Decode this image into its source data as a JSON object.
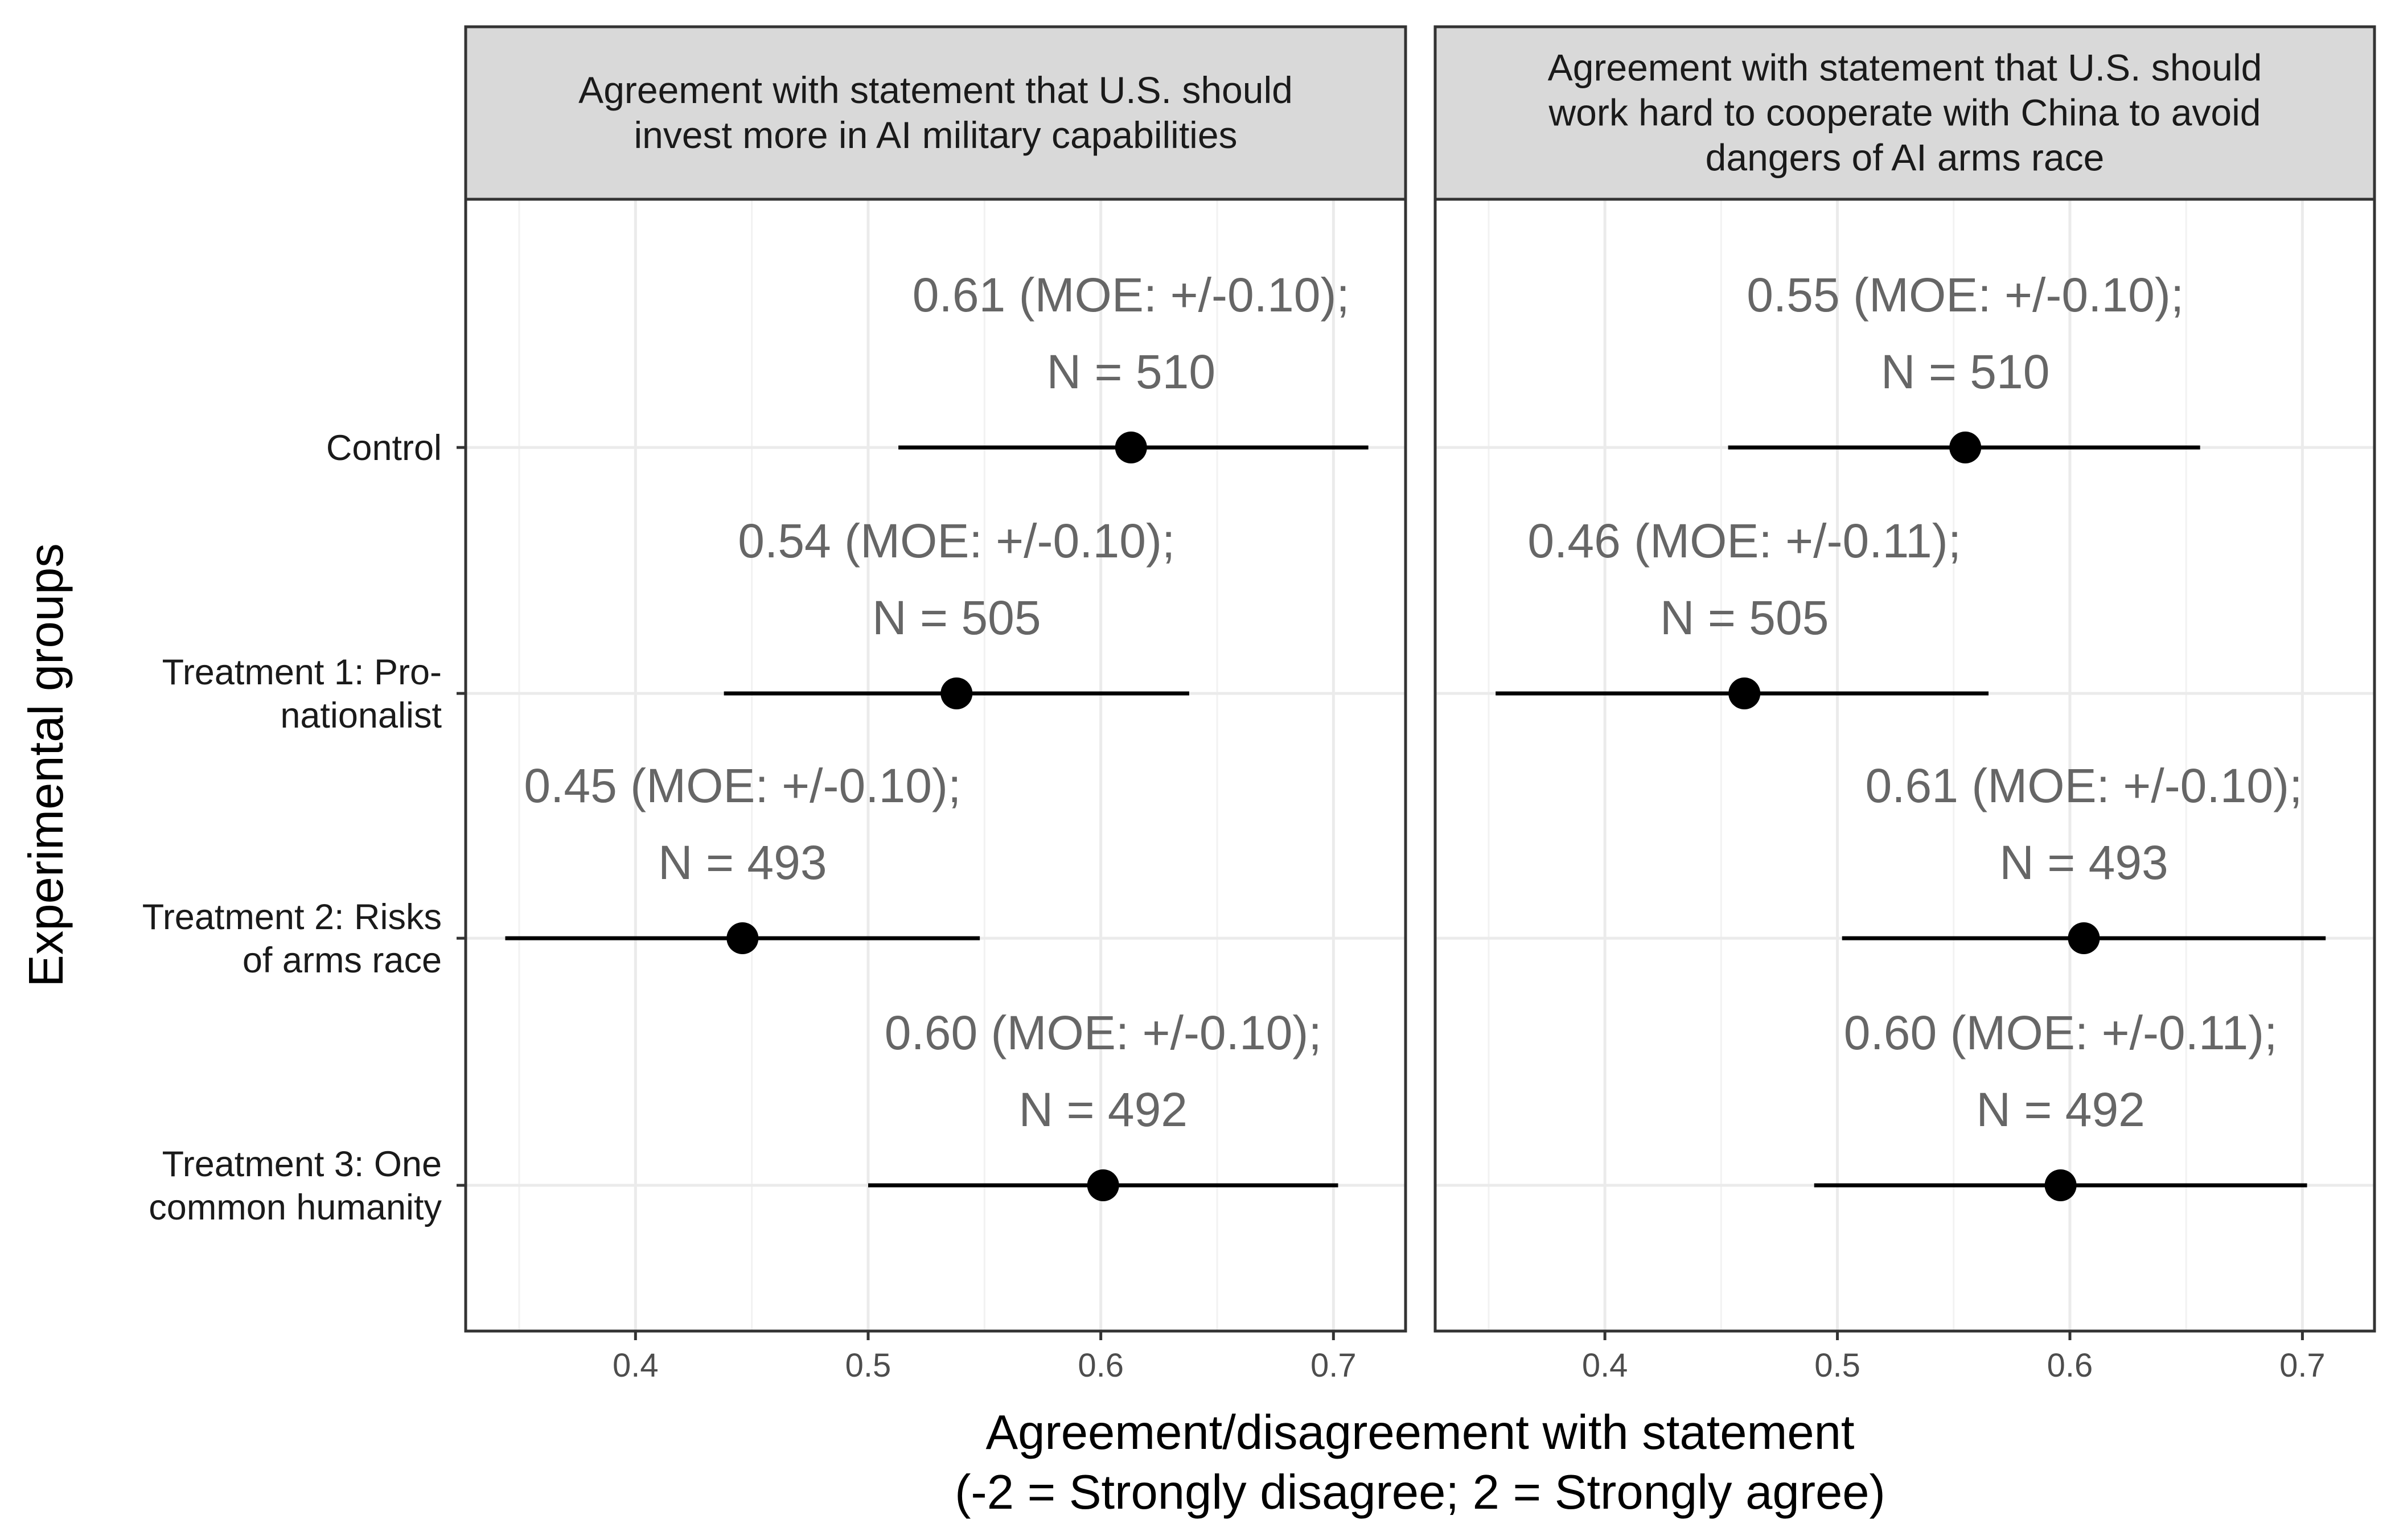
{
  "chart_data": {
    "type": "scatter",
    "subtype": "point-range faceted",
    "xlabel": [
      "Agreement/disagreement with statement",
      "(-2 = Strongly disagree; 2 = Strongly agree)"
    ],
    "ylabel": "Experimental groups",
    "xlim": [
      0.327,
      0.731
    ],
    "xticks": [
      0.4,
      0.5,
      0.6,
      0.7
    ],
    "xtick_labels": [
      "0.4",
      "0.5",
      "0.6",
      "0.7"
    ],
    "grid": true,
    "categories": [
      [
        "Control"
      ],
      [
        "Treatment 1: Pro-",
        "nationalist"
      ],
      [
        "Treatment 2: Risks",
        "of arms race"
      ],
      [
        "Treatment 3: One",
        "common humanity"
      ]
    ],
    "panels": [
      {
        "title": [
          "Agreement with statement that U.S. should",
          "invest more in AI military capabilities"
        ],
        "points": [
          {
            "mean": 0.613,
            "lower": 0.513,
            "upper": 0.715,
            "label": [
              "0.61 (MOE: +/-0.10);",
              "N = 510"
            ]
          },
          {
            "mean": 0.538,
            "lower": 0.438,
            "upper": 0.638,
            "label": [
              "0.54 (MOE: +/-0.10);",
              "N = 505"
            ]
          },
          {
            "mean": 0.446,
            "lower": 0.344,
            "upper": 0.548,
            "label": [
              "0.45 (MOE: +/-0.10);",
              "N = 493"
            ]
          },
          {
            "mean": 0.601,
            "lower": 0.5,
            "upper": 0.702,
            "label": [
              "0.60 (MOE: +/-0.10);",
              "N = 492"
            ]
          }
        ]
      },
      {
        "title": [
          "Agreement with statement that U.S. should",
          "work hard to cooperate with China to avoid",
          "dangers of AI arms race"
        ],
        "points": [
          {
            "mean": 0.555,
            "lower": 0.453,
            "upper": 0.656,
            "label": [
              "0.55 (MOE: +/-0.10);",
              "N = 510"
            ]
          },
          {
            "mean": 0.46,
            "lower": 0.353,
            "upper": 0.565,
            "label": [
              "0.46 (MOE: +/-0.11);",
              "N = 505"
            ]
          },
          {
            "mean": 0.606,
            "lower": 0.502,
            "upper": 0.71,
            "label": [
              "0.61 (MOE: +/-0.10);",
              "N = 493"
            ]
          },
          {
            "mean": 0.596,
            "lower": 0.49,
            "upper": 0.702,
            "label": [
              "0.60 (MOE: +/-0.11);",
              "N = 492"
            ]
          }
        ]
      }
    ]
  }
}
